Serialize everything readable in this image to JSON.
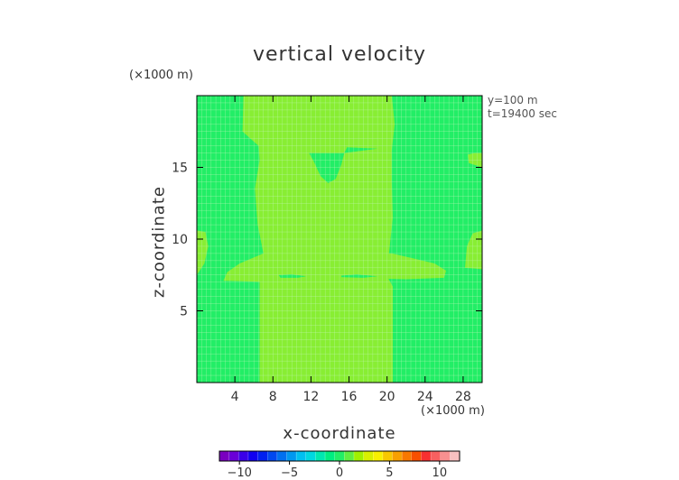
{
  "chart_data": {
    "type": "heatmap",
    "title": "vertical velocity",
    "xlabel": "x-coordinate",
    "ylabel": "z-coordinate",
    "x_scale_note": "(×1000 m)",
    "y_scale_note": "(×1000 m)",
    "annotations": [
      "y=100 m",
      "t=19400 sec"
    ],
    "xlim": [
      0,
      30
    ],
    "ylim": [
      0,
      20
    ],
    "x_ticks": [
      "4",
      "8",
      "12",
      "16",
      "20",
      "24",
      "28"
    ],
    "y_ticks": [
      "5",
      "10",
      "15"
    ],
    "background_value_color": "#22ee66",
    "feature_color": "#88ee33",
    "gridline_color": "#c8f5c0",
    "regions": [
      {
        "name": "central-updraft-column",
        "value": 1.0
      },
      {
        "name": "mid-level-updraft-band",
        "value": 1.0
      },
      {
        "name": "left-edge-lobe",
        "value": 1.0
      },
      {
        "name": "right-edge-lobes",
        "value": 1.0
      },
      {
        "name": "embedded-downdraft-pocket",
        "value": 0.0
      }
    ],
    "colorbar": {
      "range": [
        -12,
        12
      ],
      "tick_labels": [
        "-10",
        "-5",
        "0",
        "5",
        "10"
      ],
      "colors": [
        "#7a00c0",
        "#6a00d8",
        "#3a00e8",
        "#1000f0",
        "#0020f0",
        "#0048f0",
        "#0070f0",
        "#0098f0",
        "#00c0f0",
        "#00d8e0",
        "#00e8b0",
        "#00ee80",
        "#22ee66",
        "#60ee40",
        "#a0f000",
        "#d8f000",
        "#f8f000",
        "#f8c800",
        "#f8a000",
        "#f87800",
        "#f85000",
        "#f83030",
        "#f86060",
        "#f89090",
        "#f8c0c0"
      ]
    }
  }
}
